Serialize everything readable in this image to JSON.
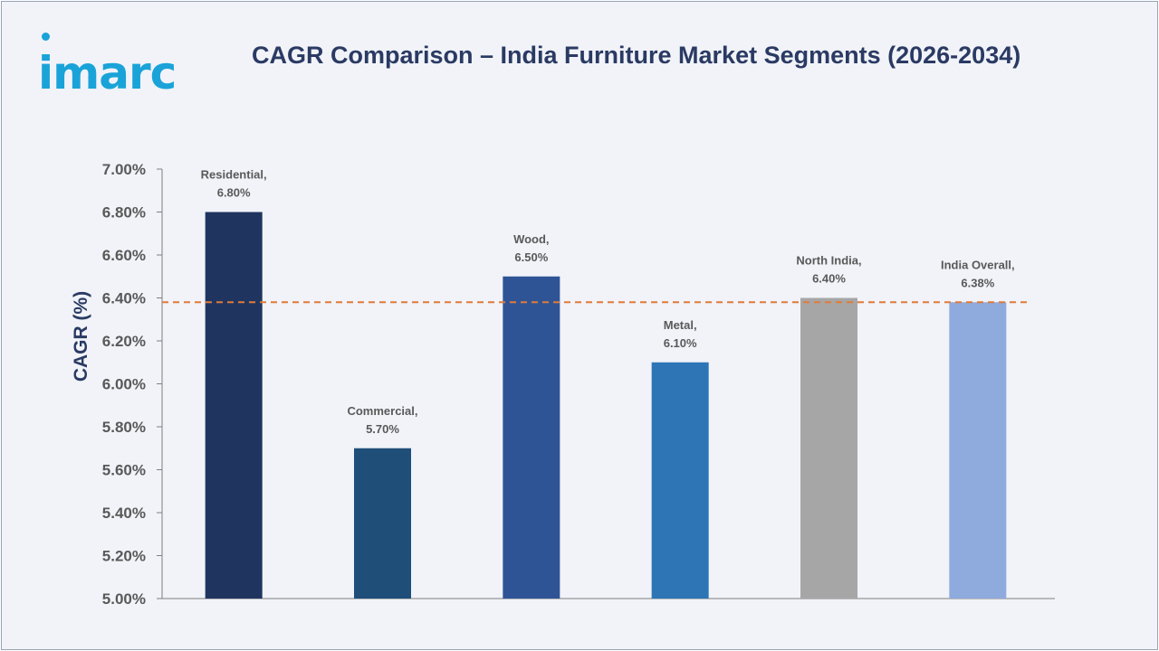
{
  "logo": {
    "text": "imarc"
  },
  "chart_data": {
    "type": "bar",
    "title": "CAGR Comparison – India Furniture Market Segments (2026-2034)",
    "xlabel": "",
    "ylabel": "CAGR (%)",
    "ylim": [
      5.0,
      7.0
    ],
    "ytick_step": 0.2,
    "ytick_labels": [
      "5.00%",
      "5.20%",
      "5.40%",
      "5.60%",
      "5.80%",
      "6.00%",
      "6.20%",
      "6.40%",
      "6.60%",
      "6.80%",
      "7.00%"
    ],
    "grid": false,
    "legend": "none",
    "categories": [
      "Residential",
      "Commercial",
      "Wood",
      "Metal",
      "North India",
      "India Overall"
    ],
    "values": [
      6.8,
      5.7,
      6.5,
      6.1,
      6.4,
      6.38
    ],
    "data_labels": [
      [
        "Residential,",
        "6.80%"
      ],
      [
        "Commercial,",
        "5.70%"
      ],
      [
        "Wood,",
        "6.50%"
      ],
      [
        "Metal,",
        "6.10%"
      ],
      [
        "North India,",
        "6.40%"
      ],
      [
        "India Overall,",
        "6.38%"
      ]
    ],
    "bar_colors": [
      "#1f3560",
      "#1f4e79",
      "#2f5496",
      "#2e75b6",
      "#a6a6a6",
      "#8faadc"
    ],
    "reference_line": {
      "value": 6.38,
      "style": "dashed",
      "color": "#e07b39"
    }
  }
}
